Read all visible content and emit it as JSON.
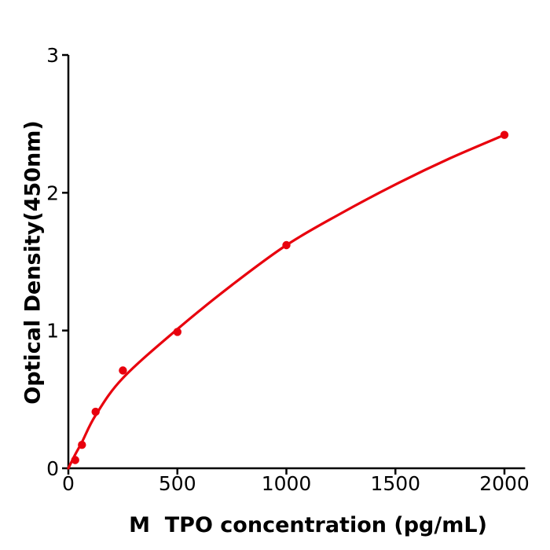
{
  "figure": {
    "background": "#ffffff",
    "axis_color": "#000000",
    "accent_red": "#e8000d"
  },
  "chart_data": {
    "type": "scatter",
    "title": "",
    "xlabel": "M  TPO concentration (pg/mL)",
    "ylabel": "Optical Density(450nm)",
    "xlim": [
      0,
      2095
    ],
    "ylim": [
      0,
      3
    ],
    "grid": false,
    "legend": "none",
    "x_ticks": [
      0,
      500,
      1000,
      1500,
      2000
    ],
    "x_tick_labels": [
      "0",
      "500",
      "1000",
      "1500",
      "2000"
    ],
    "y_ticks": [
      0,
      1,
      2,
      3
    ],
    "y_tick_labels": [
      "0",
      "1",
      "2",
      "3"
    ],
    "series": [
      {
        "name": "standard-points",
        "type": "scatter",
        "color": "#e8000d",
        "x": [
          31.25,
          62.5,
          125,
          250,
          500,
          1000,
          2000
        ],
        "y": [
          0.06,
          0.17,
          0.41,
          0.71,
          0.99,
          1.62,
          2.42
        ]
      },
      {
        "name": "fit-curve",
        "type": "line",
        "color": "#e8000d",
        "x": [
          0,
          31.25,
          62.5,
          125,
          250,
          500,
          750,
          1000,
          1250,
          1500,
          1750,
          2000
        ],
        "y": [
          0.0,
          0.1,
          0.19,
          0.385,
          0.655,
          1.01,
          1.33,
          1.62,
          1.85,
          2.06,
          2.25,
          2.42
        ]
      }
    ]
  }
}
